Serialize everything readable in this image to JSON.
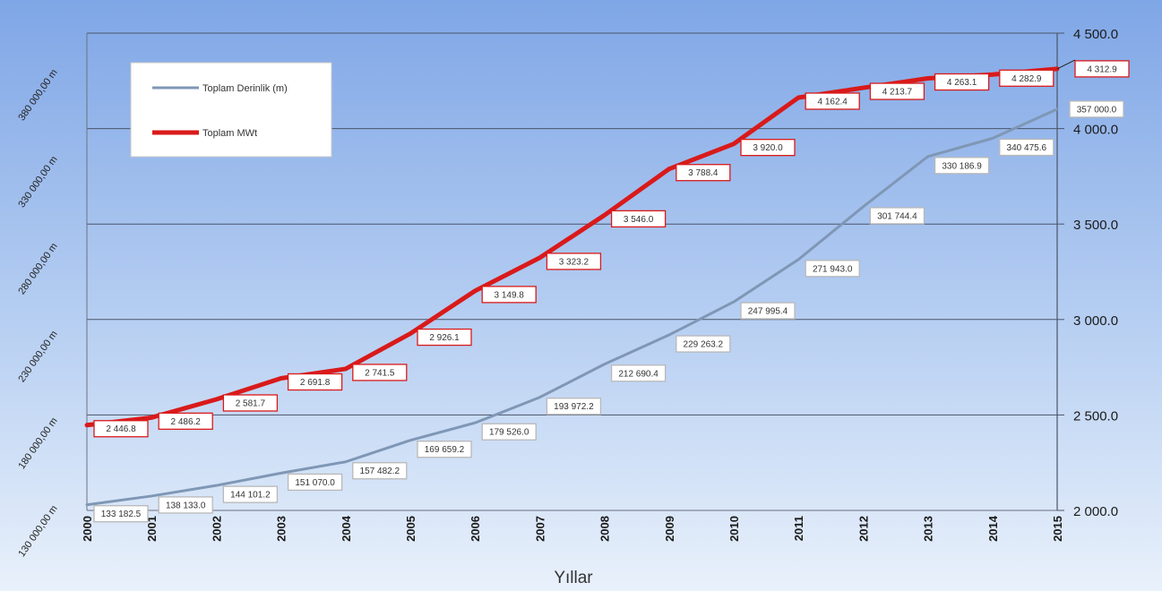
{
  "chart_data": {
    "type": "line",
    "xlabel": "Yıllar",
    "x": [
      "2000",
      "2001",
      "2002",
      "2003",
      "2004",
      "2005",
      "2006",
      "2007",
      "2008",
      "2009",
      "2010",
      "2011",
      "2012",
      "2013",
      "2014",
      "2015"
    ],
    "left_axis": {
      "ticks": [
        "130 000,00 m",
        "180 000,00 m",
        "230 000,00 m",
        "280 000,00 m",
        "330 000,00 m",
        "380 000,00 m"
      ],
      "ylim": [
        130000,
        400000
      ]
    },
    "right_axis": {
      "ticks": [
        "2 000.0",
        "2 500.0",
        "3 000.0",
        "3 500.0",
        "4 000.0",
        "4 500.0"
      ],
      "ylim": [
        2000,
        4500
      ]
    },
    "grid": true,
    "legend_position": "top-left",
    "series": [
      {
        "name": "Toplam Derinlik (m)",
        "axis": "left",
        "color": "#7f97b5",
        "values": [
          133182.5,
          138133.0,
          144101.2,
          151070.0,
          157482.2,
          169659.2,
          179526.0,
          193972.2,
          212690.4,
          229263.2,
          247995.4,
          271943.0,
          301744.4,
          330186.9,
          340475.6,
          357000.0
        ],
        "labels": [
          "133 182.5",
          "138 133.0",
          "144 101.2",
          "151 070.0",
          "157 482.2",
          "169 659.2",
          "179 526.0",
          "193 972.2",
          "212 690.4",
          "229 263.2",
          "247 995.4",
          "271 943.0",
          "301 744.4",
          "330 186.9",
          "340 475.6",
          "357 000.0"
        ]
      },
      {
        "name": "Toplam MWt",
        "axis": "right",
        "color": "#d91a1a",
        "values": [
          2446.8,
          2486.2,
          2581.7,
          2691.8,
          2741.5,
          2926.1,
          3149.8,
          3323.2,
          3546.0,
          3788.4,
          3920.0,
          4162.4,
          4213.7,
          4263.1,
          4282.9,
          4312.9
        ],
        "labels": [
          "2 446.8",
          "2 486.2",
          "2 581.7",
          "2 691.8",
          "2 741.5",
          "2 926.1",
          "3 149.8",
          "3 323.2",
          "3 546.0",
          "3 788.4",
          "3 920.0",
          "4 162.4",
          "4 213.7",
          "4 263.1",
          "4 282.9",
          "4 312.9"
        ]
      }
    ]
  }
}
